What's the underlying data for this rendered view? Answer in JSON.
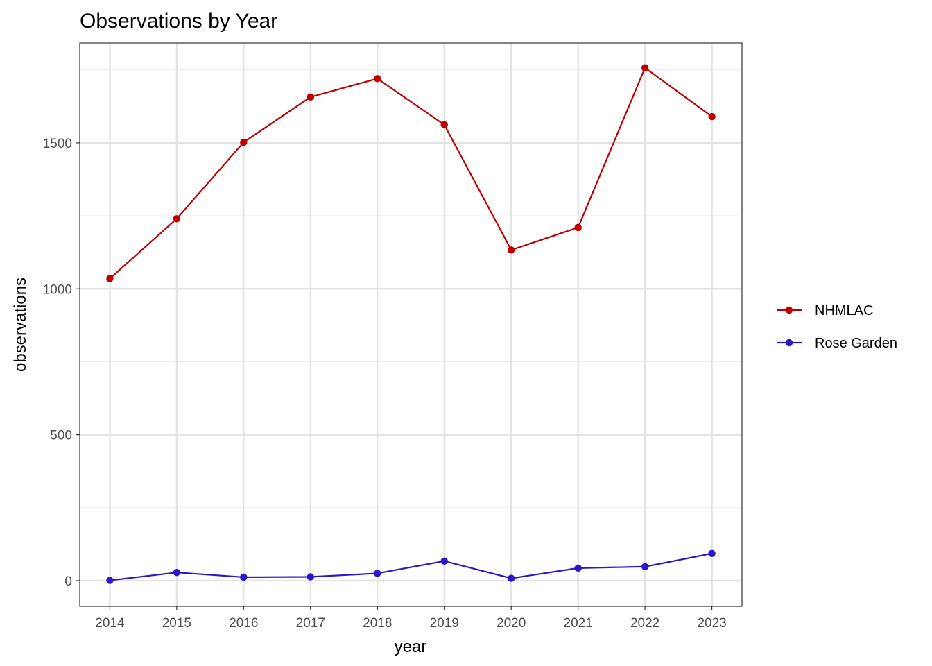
{
  "chart_data": {
    "type": "line",
    "title": "Observations by Year",
    "xlabel": "year",
    "ylabel": "observations",
    "x": [
      2014,
      2015,
      2016,
      2017,
      2018,
      2019,
      2020,
      2021,
      2022,
      2023
    ],
    "xlim": [
      2013.55,
      2023.45
    ],
    "ylim": [
      -88,
      1842
    ],
    "y_ticks": [
      0,
      500,
      1000,
      1500
    ],
    "y_minor_ticks": [
      250,
      750,
      1250,
      1750
    ],
    "grid": true,
    "legend_position": "right",
    "series": [
      {
        "name": "NHMLAC",
        "color": "#c00000",
        "values": [
          1035,
          1240,
          1502,
          1657,
          1720,
          1562,
          1133,
          1210,
          1757,
          1590
        ]
      },
      {
        "name": "Rose Garden",
        "color": "#2a17c9",
        "values": [
          1,
          28,
          12,
          13,
          25,
          67,
          8,
          43,
          48,
          93
        ]
      }
    ]
  }
}
